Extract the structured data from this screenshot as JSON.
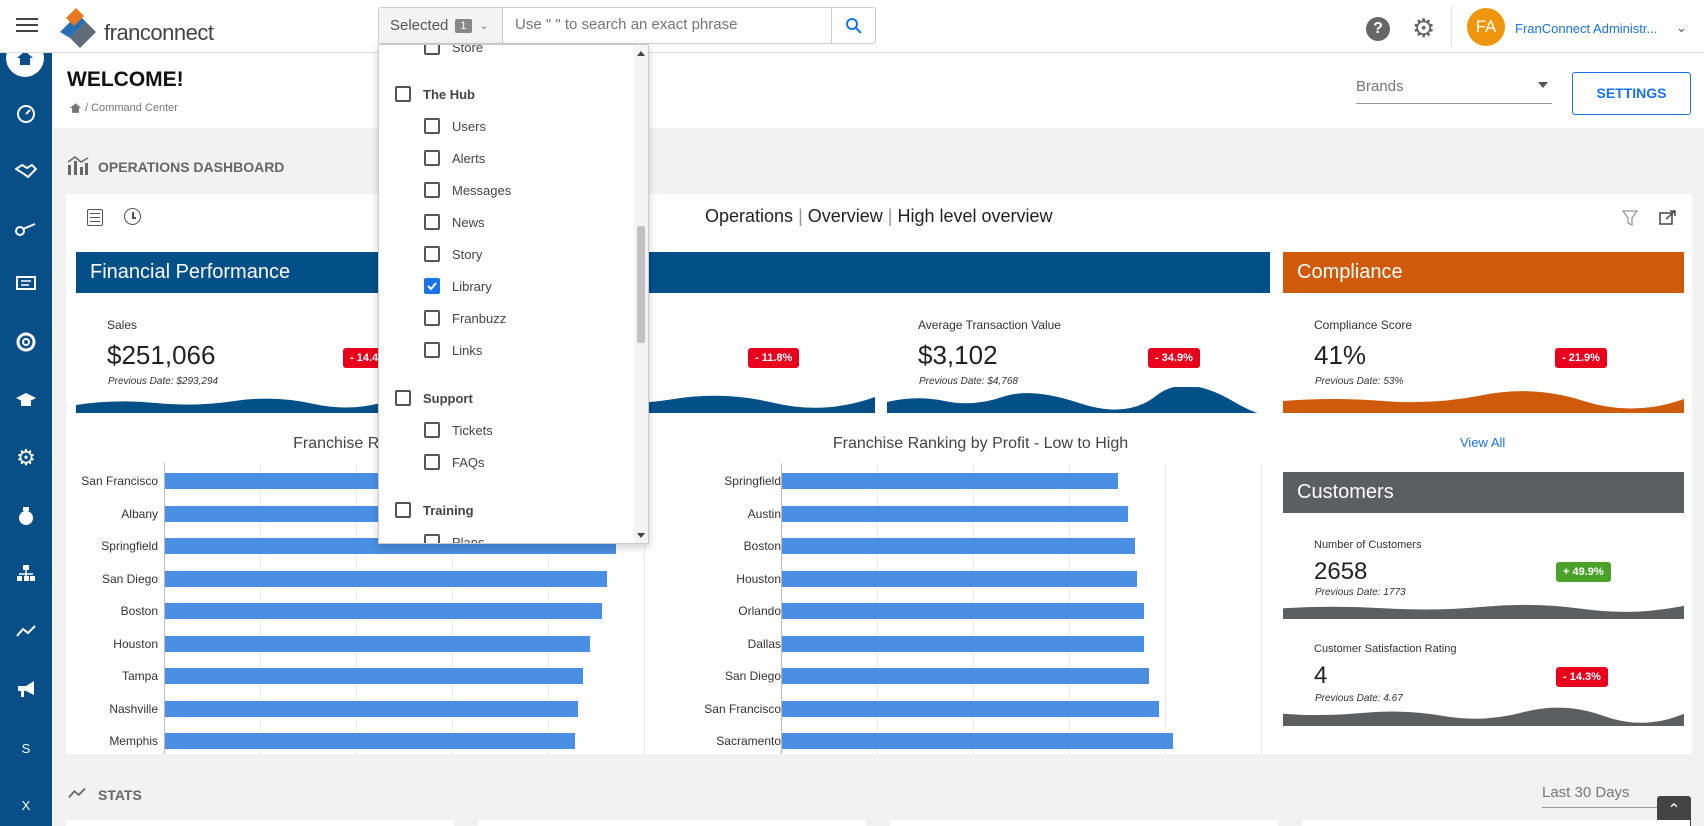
{
  "header": {
    "brand": "franconnect",
    "search": {
      "selected_label": "Selected",
      "selected_count": "1",
      "placeholder": "Use \" \" to search an exact phrase"
    },
    "user": {
      "initials": "FA",
      "name": "FranConnect Administr..."
    }
  },
  "page": {
    "title": "WELCOME!",
    "breadcrumb": "/ Command Center",
    "brands_select": "Brands",
    "settings_label": "SETTINGS",
    "section_title": "OPERATIONS DASHBOARD",
    "stats_title": "STATS",
    "stats_range": "Last 30 Days"
  },
  "toolbar": {
    "crumb1": "Operations",
    "crumb2": "Overview",
    "crumb3": "High level overview"
  },
  "financial": {
    "title": "Financial Performance",
    "cards": [
      {
        "label": "Sales",
        "value": "$251,066",
        "prev": "Previous Date: $293,294",
        "badge": "- 14.4"
      },
      {
        "label": "",
        "value": "",
        "prev": "",
        "badge": "- 11.8%"
      },
      {
        "label": "Average Transaction Value",
        "value": "$3,102",
        "prev": "Previous Date: $4,768",
        "badge": "- 34.9%"
      }
    ]
  },
  "compliance": {
    "title": "Compliance",
    "card": {
      "label": "Compliance Score",
      "value": "41%",
      "prev": "Previous Date: 53%",
      "badge": "- 21.9%"
    },
    "view_all": "View All"
  },
  "customers": {
    "title": "Customers",
    "cards": [
      {
        "label": "Number of Customers",
        "value": "2658",
        "prev": "Previous Date: 1773",
        "badge": "+ 49.9%"
      },
      {
        "label": "Customer Satisfaction Rating",
        "value": "4",
        "prev": "Previous Date: 4.67",
        "badge": "- 14.3%"
      }
    ]
  },
  "dropdown": {
    "items": [
      {
        "label": "Store",
        "level": 2,
        "checked": false
      },
      {
        "label": "The Hub",
        "level": 1,
        "checked": false
      },
      {
        "label": "Users",
        "level": 2,
        "checked": false
      },
      {
        "label": "Alerts",
        "level": 2,
        "checked": false
      },
      {
        "label": "Messages",
        "level": 2,
        "checked": false
      },
      {
        "label": "News",
        "level": 2,
        "checked": false
      },
      {
        "label": "Story",
        "level": 2,
        "checked": false
      },
      {
        "label": "Library",
        "level": 2,
        "checked": true
      },
      {
        "label": "Franbuzz",
        "level": 2,
        "checked": false
      },
      {
        "label": "Links",
        "level": 2,
        "checked": false
      },
      {
        "label": "Support",
        "level": 1,
        "checked": false
      },
      {
        "label": "Tickets",
        "level": 2,
        "checked": false
      },
      {
        "label": "FAQs",
        "level": 2,
        "checked": false
      },
      {
        "label": "Training",
        "level": 1,
        "checked": false
      },
      {
        "label": "Plans",
        "level": 2,
        "checked": false
      }
    ]
  },
  "rail": {
    "items": [
      "home-icon",
      "gauge-icon",
      "handshake-icon",
      "key-icon",
      "chat-icon",
      "lifebuoy-icon",
      "graduation-icon",
      "gear-icon",
      "money-bag-icon",
      "org-chart-icon",
      "trend-icon",
      "megaphone-icon"
    ],
    "letter_s": "S",
    "letter_x": "X"
  },
  "chart_data": [
    {
      "type": "bar",
      "title": "Franchise Ranking by P",
      "categories": [
        "San Francisco",
        "Albany",
        "Springfield",
        "San Diego",
        "Boston",
        "Houston",
        "Tampa",
        "Nashville",
        "Memphis"
      ],
      "values": [
        null,
        null,
        0.94,
        0.92,
        0.91,
        0.885,
        0.87,
        0.86,
        0.855
      ]
    },
    {
      "type": "bar",
      "title": "Franchise Ranking by Profit - Low to High",
      "categories": [
        "Springfield",
        "Austin",
        "Boston",
        "Houston",
        "Orlando",
        "Dallas",
        "San Diego",
        "San Francisco",
        "Sacramento"
      ],
      "values": [
        0.7,
        0.72,
        0.735,
        0.74,
        0.755,
        0.755,
        0.765,
        0.785,
        0.815
      ]
    }
  ],
  "colors": {
    "rail": "#074f86",
    "financial": "#035089",
    "compliance": "#cf5b0a",
    "customers": "#5d5e60",
    "bar": "#4a8fe2",
    "badge_red": "#e8001c",
    "badge_green": "#4aa22a",
    "accent": "#1a73e8"
  }
}
